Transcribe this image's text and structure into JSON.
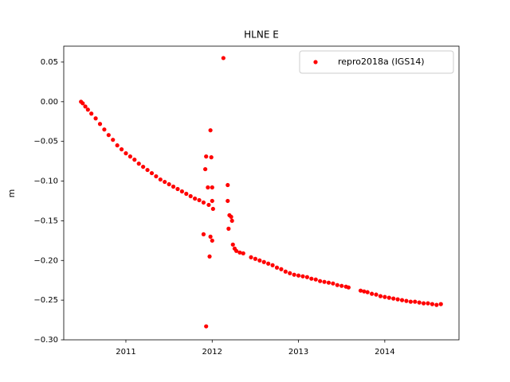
{
  "chart_data": {
    "type": "scatter",
    "title": "HLNE E",
    "ylabel": "m",
    "x": [
      2010.48,
      2010.5,
      2010.53,
      2010.56,
      2010.6,
      2010.65,
      2010.7,
      2010.75,
      2010.8,
      2010.85,
      2010.9,
      2010.95,
      2011.0,
      2011.05,
      2011.1,
      2011.15,
      2011.2,
      2011.25,
      2011.3,
      2011.35,
      2011.4,
      2011.45,
      2011.5,
      2011.55,
      2011.6,
      2011.65,
      2011.7,
      2011.75,
      2011.8,
      2011.85,
      2011.9,
      2011.9,
      2011.93,
      2011.92,
      2011.93,
      2011.95,
      2011.97,
      2011.98,
      2011.99,
      2011.96,
      2011.98,
      2012.0,
      2012.0,
      2012.0,
      2012.01,
      2012.13,
      2012.18,
      2012.18,
      2012.19,
      2012.2,
      2012.22,
      2012.23,
      2012.24,
      2012.26,
      2012.28,
      2012.32,
      2012.36,
      2012.45,
      2012.5,
      2012.55,
      2012.6,
      2012.65,
      2012.7,
      2012.75,
      2012.8,
      2012.85,
      2012.9,
      2012.95,
      2013.0,
      2013.05,
      2013.1,
      2013.15,
      2013.2,
      2013.25,
      2013.3,
      2013.35,
      2013.4,
      2013.45,
      2013.5,
      2013.55,
      2013.58,
      2013.72,
      2013.76,
      2013.8,
      2013.85,
      2013.9,
      2013.95,
      2014.0,
      2014.05,
      2014.1,
      2014.15,
      2014.2,
      2014.25,
      2014.3,
      2014.35,
      2014.4,
      2014.45,
      2014.5,
      2014.55,
      2014.6,
      2014.65
    ],
    "series": [
      {
        "name": "repro2018a (IGS14)",
        "color": "#ff0000",
        "values": [
          0.0,
          -0.002,
          -0.006,
          -0.01,
          -0.015,
          -0.021,
          -0.028,
          -0.035,
          -0.042,
          -0.048,
          -0.055,
          -0.06,
          -0.065,
          -0.069,
          -0.073,
          -0.078,
          -0.082,
          -0.086,
          -0.09,
          -0.094,
          -0.098,
          -0.101,
          -0.104,
          -0.107,
          -0.11,
          -0.113,
          -0.116,
          -0.119,
          -0.122,
          -0.124,
          -0.127,
          -0.167,
          -0.283,
          -0.085,
          -0.069,
          -0.108,
          -0.195,
          -0.036,
          -0.07,
          -0.13,
          -0.17,
          -0.175,
          -0.108,
          -0.125,
          -0.135,
          0.055,
          -0.105,
          -0.125,
          -0.16,
          -0.143,
          -0.145,
          -0.15,
          -0.18,
          -0.185,
          -0.188,
          -0.19,
          -0.191,
          -0.196,
          -0.198,
          -0.2,
          -0.202,
          -0.204,
          -0.206,
          -0.209,
          -0.211,
          -0.214,
          -0.216,
          -0.218,
          -0.219,
          -0.22,
          -0.221,
          -0.223,
          -0.224,
          -0.226,
          -0.227,
          -0.228,
          -0.229,
          -0.231,
          -0.232,
          -0.233,
          -0.234,
          -0.238,
          -0.239,
          -0.24,
          -0.242,
          -0.243,
          -0.245,
          -0.246,
          -0.247,
          -0.248,
          -0.249,
          -0.25,
          -0.251,
          -0.252,
          -0.252,
          -0.253,
          -0.254,
          -0.254,
          -0.255,
          -0.256,
          -0.255
        ]
      }
    ],
    "xlim": [
      2010.28,
      2014.86
    ],
    "xticks": [
      2011,
      2012,
      2013,
      2014
    ],
    "ylim": [
      -0.3,
      0.07
    ],
    "yticks": [
      0.05,
      {
        "value": 0,
        "label": "0.00"
      },
      {
        "value": -0.05,
        "label": "−0.05"
      },
      {
        "value": -0.1,
        "label": "−0.10"
      },
      {
        "value": -0.15,
        "label": "−0.15"
      },
      {
        "value": -0.2,
        "label": "−0.20"
      },
      {
        "value": -0.25,
        "label": "−0.25"
      },
      {
        "value": -0.3,
        "label": "−0.30"
      }
    ],
    "grid": false,
    "legend": "upper right"
  }
}
